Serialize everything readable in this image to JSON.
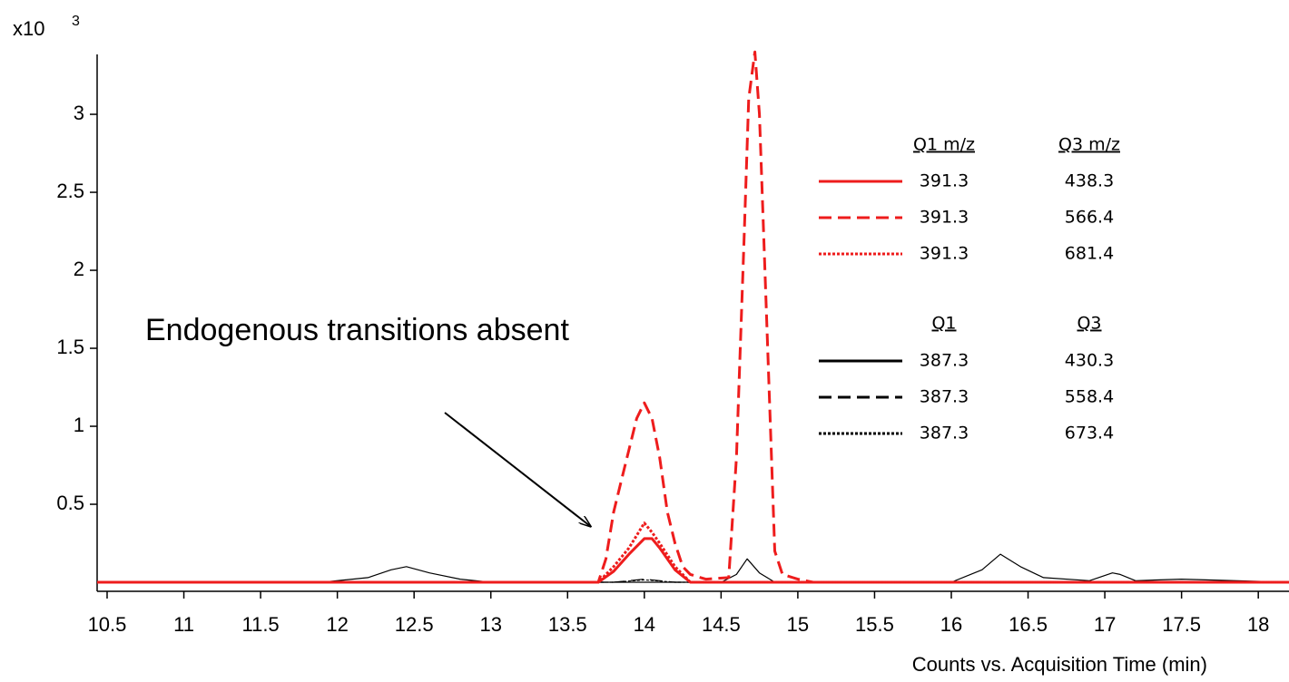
{
  "chart_data": {
    "type": "line",
    "y_axis_multiplier": "x10",
    "y_axis_exponent": "3",
    "x_label": "Counts vs. Acquisition Time (min)",
    "annotation": "Endogenous transitions absent",
    "xlim": [
      10.435,
      18.2
    ],
    "ylim": [
      -0.058,
      3.384
    ],
    "xticks": [
      10.5,
      11,
      11.5,
      12,
      12.5,
      13,
      13.5,
      14,
      14.5,
      15,
      15.5,
      16,
      16.5,
      17,
      17.5,
      18
    ],
    "yticks": [
      0.5,
      1,
      1.5,
      2,
      2.5,
      3
    ],
    "legend_headers": [
      {
        "q1": "Q1  m/z",
        "q3": "Q3  m/z",
        "color": "#ee1c1c"
      },
      {
        "q1": "Q1",
        "q3": "Q3",
        "color": "#000000"
      }
    ],
    "series": [
      {
        "q1": "391.3",
        "q3": "438.3",
        "group": 0,
        "color": "#ee1c1c",
        "dash": "solid",
        "line_width": 3,
        "x": [
          10.435,
          13.7,
          13.8,
          13.9,
          14.0,
          14.05,
          14.1,
          14.2,
          14.3,
          18.2
        ],
        "values": [
          0,
          0,
          0.07,
          0.18,
          0.28,
          0.28,
          0.22,
          0.08,
          0,
          0
        ]
      },
      {
        "q1": "391.3",
        "q3": "566.4",
        "group": 0,
        "color": "#ee1c1c",
        "dash": "dashed",
        "line_width": 3,
        "x": [
          10.435,
          13.7,
          13.75,
          13.8,
          13.85,
          13.9,
          13.95,
          14.0,
          14.05,
          14.1,
          14.15,
          14.2,
          14.25,
          14.3,
          14.4,
          14.55,
          14.6,
          14.65,
          14.68,
          14.72,
          14.75,
          14.8,
          14.85,
          14.9,
          15.0,
          15.1,
          18.2
        ],
        "values": [
          0,
          0,
          0.15,
          0.45,
          0.65,
          0.85,
          1.05,
          1.15,
          1.05,
          0.8,
          0.45,
          0.25,
          0.1,
          0.05,
          0.02,
          0.03,
          0.8,
          2.2,
          3.1,
          3.4,
          3.0,
          1.6,
          0.2,
          0.05,
          0.02,
          0,
          0
        ]
      },
      {
        "q1": "391.3",
        "q3": "681.4",
        "group": 0,
        "color": "#ee1c1c",
        "dash": "dotted",
        "line_width": 3,
        "x": [
          10.435,
          13.7,
          13.8,
          13.9,
          13.95,
          14.0,
          14.05,
          14.1,
          14.2,
          14.3,
          18.2
        ],
        "values": [
          0,
          0,
          0.1,
          0.22,
          0.3,
          0.38,
          0.32,
          0.25,
          0.1,
          0,
          0
        ]
      },
      {
        "q1": "387.3",
        "q3": "430.3",
        "group": 1,
        "color": "#000000",
        "dash": "solid",
        "line_width": 1.2,
        "x": [
          10.435,
          11.9,
          12.2,
          12.35,
          12.45,
          12.6,
          12.8,
          13.0,
          14.5,
          14.6,
          14.67,
          14.75,
          14.85,
          16.0,
          16.2,
          16.32,
          16.45,
          16.6,
          16.9,
          17.05,
          17.1,
          17.2,
          17.5,
          18.2
        ],
        "values": [
          0,
          0,
          0.03,
          0.08,
          0.1,
          0.06,
          0.02,
          0,
          0,
          0.05,
          0.15,
          0.06,
          0,
          0,
          0.08,
          0.18,
          0.1,
          0.03,
          0.01,
          0.06,
          0.05,
          0.01,
          0.02,
          0
        ]
      },
      {
        "q1": "387.3",
        "q3": "558.4",
        "group": 1,
        "color": "#000000",
        "dash": "dashed",
        "line_width": 1.2,
        "x": [
          10.435,
          13.8,
          14.0,
          14.2,
          18.2
        ],
        "values": [
          0,
          0,
          0.02,
          0,
          0
        ]
      },
      {
        "q1": "387.3",
        "q3": "673.4",
        "group": 1,
        "color": "#000000",
        "dash": "dotted",
        "line_width": 1.2,
        "x": [
          10.435,
          13.8,
          14.0,
          14.2,
          18.2
        ],
        "values": [
          0,
          0,
          0.015,
          0,
          0
        ]
      }
    ]
  }
}
